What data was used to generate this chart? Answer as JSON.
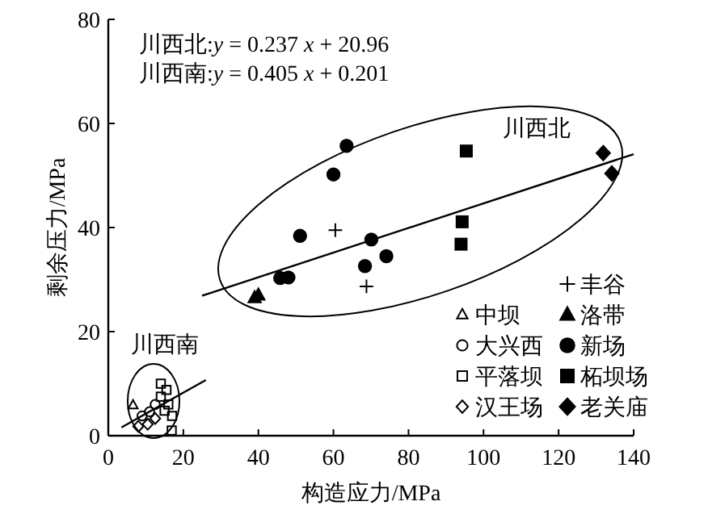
{
  "chart_data": {
    "type": "scatter",
    "xlabel": "构造应力/MPa",
    "ylabel": "剩余压力/MPa",
    "xlim": [
      0,
      140
    ],
    "xticks": [
      0,
      20,
      40,
      60,
      80,
      100,
      120,
      140
    ],
    "ylim": [
      0,
      80
    ],
    "yticks": [
      0,
      20,
      40,
      60,
      80
    ],
    "grid": false,
    "legend": "bottom right",
    "annotations": [
      "川西北:*y* = 0.237 *x* + 20.96",
      "川西南:*y* = 0.405 *x* + 0.201",
      "川西北",
      "川西南"
    ],
    "series": [
      {
        "name": "中坝",
        "color": "#000000",
        "marker": "triangle-open",
        "x": [
          6.6
        ],
        "values": [
          5.9
        ]
      },
      {
        "name": "大兴西",
        "color": "#000000",
        "marker": "circle-open",
        "x": [
          9,
          11,
          12.5
        ],
        "values": [
          3.8,
          4.6,
          6
        ]
      },
      {
        "name": "平落坝",
        "color": "#000000",
        "marker": "square-open",
        "x": [
          14,
          16.9,
          14,
          15.5,
          16,
          15,
          17
        ],
        "values": [
          10,
          1,
          7.5,
          8.8,
          6,
          4.8,
          3.8
        ]
      },
      {
        "name": "汉王场",
        "color": "#000000",
        "marker": "diamond-open",
        "x": [
          8,
          10.5,
          12.5
        ],
        "values": [
          1.8,
          2.2,
          3.3
        ]
      },
      {
        "name": "丰谷",
        "color": "#000000",
        "marker": "cross",
        "x": [
          60.5,
          68.8
        ],
        "values": [
          39.5,
          28.7
        ]
      },
      {
        "name": "洛带",
        "color": "#000000",
        "marker": "triangle",
        "x": [
          39,
          40
        ],
        "values": [
          26.5,
          27
        ]
      },
      {
        "name": "新场",
        "color": "#000000",
        "marker": "circle",
        "x": [
          51.1,
          60,
          63.5,
          70.1,
          74.1,
          45.8,
          48,
          68.4
        ],
        "values": [
          38.4,
          50.2,
          55.7,
          37.7,
          34.5,
          30.3,
          30.4,
          32.6
        ]
      },
      {
        "name": "柘坝场",
        "color": "#000000",
        "marker": "square",
        "x": [
          95.4,
          94.3,
          94
        ],
        "values": [
          54.7,
          41.1,
          36.8
        ]
      },
      {
        "name": "老关庙",
        "color": "#000000",
        "marker": "diamond",
        "x": [
          131.9,
          134.2
        ],
        "values": [
          54.3,
          50.4
        ]
      },
      {
        "type": "line",
        "color": "#000000",
        "marker": "none",
        "x": [
          25,
          140
        ],
        "values": [
          26.9,
          54.1
        ]
      },
      {
        "type": "line",
        "color": "#000000",
        "marker": "none",
        "x": [
          3.5,
          26
        ],
        "values": [
          1.6,
          10.7
        ]
      }
    ]
  }
}
